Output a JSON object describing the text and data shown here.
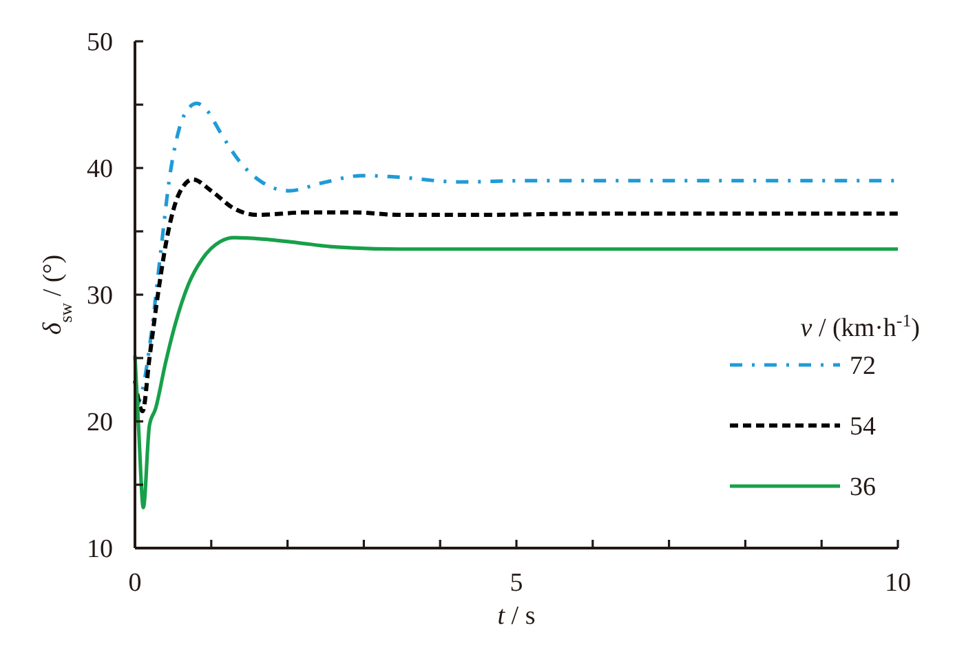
{
  "chart_data": {
    "type": "line",
    "xlabel": "t / s",
    "ylabel": "δ$_{sw}$ / (°)",
    "legend_title": "v / (km·h$^{-1}$)",
    "legend": "right",
    "xlim": [
      0,
      10
    ],
    "xticks": [
      0,
      {
        "value": 1,
        "label": null
      },
      {
        "value": 2,
        "label": null
      },
      {
        "value": 3,
        "label": null
      },
      {
        "value": 4,
        "label": null
      },
      5,
      {
        "value": 6,
        "label": null
      },
      {
        "value": 7,
        "label": null
      },
      {
        "value": 8,
        "label": null
      },
      {
        "value": 9,
        "label": null
      },
      10
    ],
    "ylim": [
      10,
      50
    ],
    "yticks": [
      10,
      {
        "value": 15,
        "label": null
      },
      20,
      {
        "value": 25,
        "label": null
      },
      30,
      {
        "value": 35,
        "label": null
      },
      40,
      {
        "value": 45,
        "label": null
      },
      50
    ],
    "series": [
      {
        "name": "72",
        "color": "#1f9bd7",
        "line_style": "dashdot",
        "x": [
          0,
          0.1,
          0.22,
          0.34,
          0.46,
          0.58,
          0.7,
          0.81,
          0.95,
          1.12,
          1.36,
          1.66,
          2.02,
          2.44,
          2.98,
          3.4,
          4.25,
          5.15,
          6,
          8,
          10
        ],
        "values": [
          20.9,
          22.5,
          27.2,
          33.5,
          39.5,
          43.1,
          44.7,
          45.1,
          44.5,
          42.8,
          40.6,
          38.9,
          38.2,
          38.8,
          39.4,
          39.3,
          38.9,
          39.0,
          39.0,
          39.0,
          39.0
        ]
      },
      {
        "name": "54",
        "color": "#000000",
        "line_style": "dashed",
        "x": [
          0,
          0.1,
          0.19,
          0.31,
          0.43,
          0.58,
          0.76,
          1.0,
          1.3,
          1.6,
          2.26,
          2.86,
          3.47,
          4.5,
          6,
          10
        ],
        "values": [
          23.2,
          20.8,
          25.0,
          30.4,
          34.8,
          38.0,
          39.1,
          38.2,
          36.8,
          36.3,
          36.5,
          36.5,
          36.3,
          36.3,
          36.4,
          36.4
        ]
      },
      {
        "name": "36",
        "color": "#17a049",
        "line_style": "solid",
        "x": [
          0,
          0.05,
          0.11,
          0.19,
          0.27,
          0.4,
          0.52,
          0.7,
          0.88,
          1.12,
          1.3,
          1.66,
          2.14,
          2.56,
          3.47,
          10
        ],
        "values": [
          25.2,
          19.2,
          13.2,
          19.7,
          21.0,
          24.6,
          27.5,
          30.8,
          32.8,
          34.2,
          34.5,
          34.4,
          34.1,
          33.8,
          33.6,
          33.6
        ]
      }
    ]
  }
}
